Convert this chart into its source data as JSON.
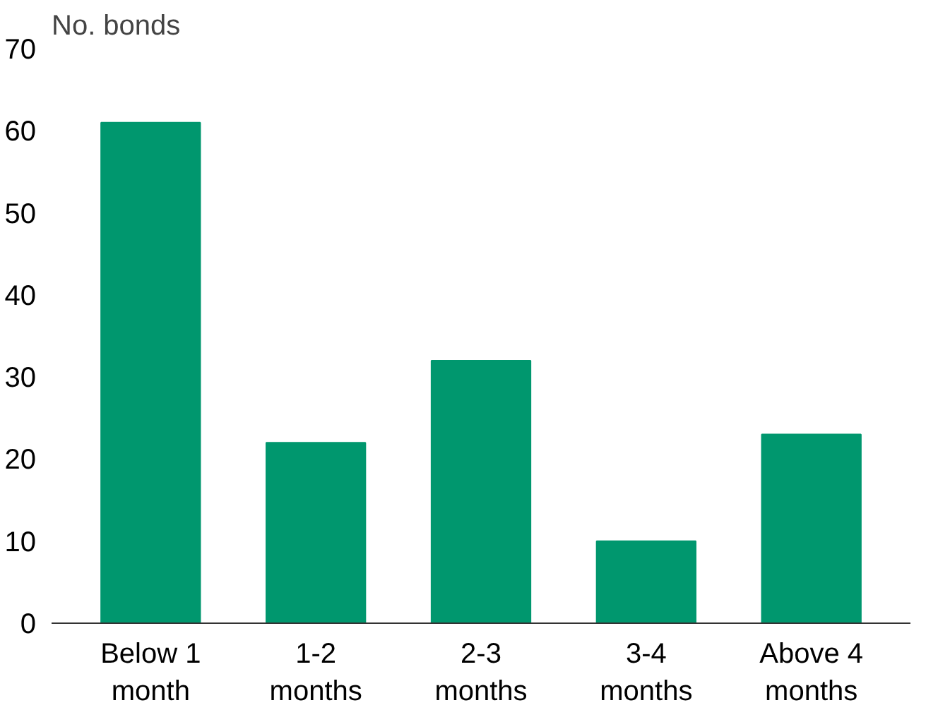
{
  "chart_data": {
    "type": "bar",
    "ylabel": "No. bonds",
    "categories": [
      "Below 1\nmonth",
      "1-2\nmonths",
      "2-3\nmonths",
      "3-4\nmonths",
      "Above 4\nmonths"
    ],
    "values": [
      61,
      22,
      32,
      10,
      23
    ],
    "color": "#00976e",
    "ylim": [
      0,
      70
    ],
    "yticks": [
      0,
      10,
      20,
      30,
      40,
      50,
      60,
      70
    ],
    "grid": false
  }
}
